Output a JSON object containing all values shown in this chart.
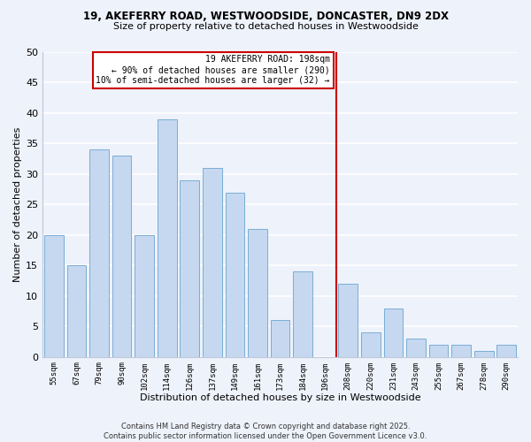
{
  "title1": "19, AKEFERRY ROAD, WESTWOODSIDE, DONCASTER, DN9 2DX",
  "title2": "Size of property relative to detached houses in Westwoodside",
  "xlabel": "Distribution of detached houses by size in Westwoodside",
  "ylabel": "Number of detached properties",
  "bar_labels": [
    "55sqm",
    "67sqm",
    "79sqm",
    "90sqm",
    "102sqm",
    "114sqm",
    "126sqm",
    "137sqm",
    "149sqm",
    "161sqm",
    "173sqm",
    "184sqm",
    "196sqm",
    "208sqm",
    "220sqm",
    "231sqm",
    "243sqm",
    "255sqm",
    "267sqm",
    "278sqm",
    "290sqm"
  ],
  "bar_values": [
    20,
    15,
    34,
    33,
    20,
    39,
    29,
    31,
    27,
    21,
    6,
    14,
    0,
    12,
    4,
    8,
    3,
    2,
    2,
    1,
    2
  ],
  "bar_color": "#c5d8f0",
  "bar_edge_color": "#7aadd4",
  "ref_line_x": 12.5,
  "ref_line_color": "#cc0000",
  "annotation_line1": "19 AKEFERRY ROAD: 198sqm",
  "annotation_line2": "← 90% of detached houses are smaller (290)",
  "annotation_line3": "10% of semi-detached houses are larger (32) →",
  "annotation_box_color": "#ffffff",
  "annotation_box_edge_color": "#cc0000",
  "ylim": [
    0,
    50
  ],
  "yticks": [
    0,
    5,
    10,
    15,
    20,
    25,
    30,
    35,
    40,
    45,
    50
  ],
  "background_color": "#eef2fb",
  "grid_color": "#ffffff",
  "footer1": "Contains HM Land Registry data © Crown copyright and database right 2025.",
  "footer2": "Contains public sector information licensed under the Open Government Licence v3.0."
}
